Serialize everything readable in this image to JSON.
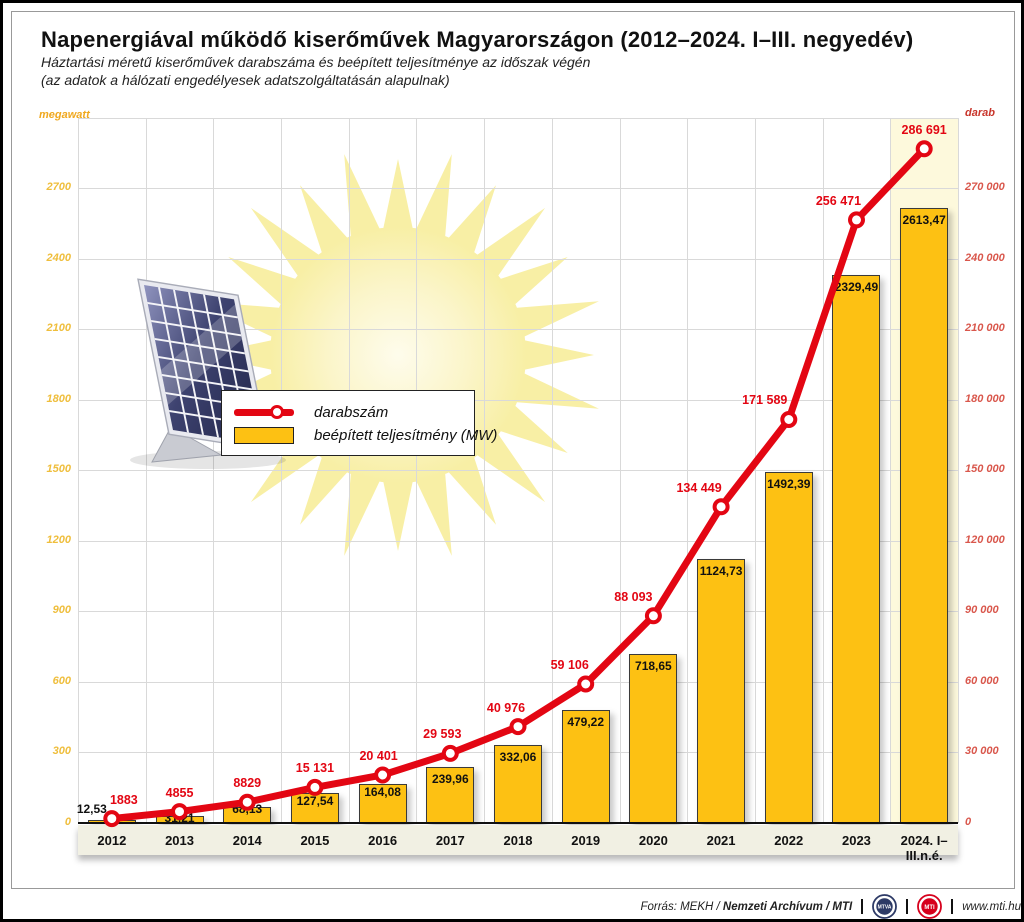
{
  "title": "Napenergiával működő kiserőművek Magyarországon (2012–2024. I–III. negyedév)",
  "subtitle_line1": "Háztartási méretű kiserőművek darabszáma és beépített teljesítménye az időszak végén",
  "subtitle_line2": "(az adatok a hálózati engedélyesek adatszolgáltatásán alapulnak)",
  "legend": {
    "line_label": "darabszám",
    "bar_label": "beépített teljesítmény (MW)"
  },
  "footer": {
    "source_regular": "Forrás: MEKH /",
    "source_bold": "Nemzeti Archívum / MTI",
    "logo_mtva": "MTVA",
    "logo_mti": "MTI",
    "website": "www.mti.hu"
  },
  "colors": {
    "bar_fill": "#FDC113",
    "bar_border": "#3a3a3a",
    "line_red": "#E30613",
    "grid": "#D9D9D9",
    "left_axis_ticks": "#EFBE3C",
    "left_axis_title": "#F0A81E",
    "right_axis_ticks": "#D9574C",
    "right_axis_title": "#C8352B",
    "highlight_band": "#FDF9DC",
    "xaxis_band": "#F1F0E3",
    "sun": "#F8EFA5",
    "logo_mtva_color": "#2D3A66",
    "logo_mti_color": "#D6001C"
  },
  "chart_data": {
    "type": "bar",
    "title": "Napenergiával működő kiserőművek Magyarországon (2012–2024. I–III. negyedév)",
    "categories": [
      "2012",
      "2013",
      "2014",
      "2015",
      "2016",
      "2017",
      "2018",
      "2019",
      "2020",
      "2021",
      "2022",
      "2023",
      "2024. I–III.n.é."
    ],
    "series": [
      {
        "name": "darabszám",
        "type": "line",
        "axis": "right",
        "values": [
          1883,
          4855,
          8829,
          15131,
          20401,
          29593,
          40976,
          59106,
          88093,
          134449,
          171589,
          256471,
          286691
        ],
        "labels": [
          "1883",
          "4855",
          "8829",
          "15 131",
          "20 401",
          "29 593",
          "40 976",
          "59 106",
          "88 093",
          "134 449",
          "171 589",
          "256 471",
          "286 691"
        ]
      },
      {
        "name": "beépített teljesítmény (MW)",
        "type": "bar",
        "axis": "left",
        "values": [
          12.53,
          31.21,
          68.13,
          127.54,
          164.08,
          239.96,
          332.06,
          479.22,
          718.65,
          1124.73,
          1492.39,
          2329.49,
          2613.47
        ],
        "labels": [
          "12,53",
          "31,21",
          "68,13",
          "127,54",
          "164,08",
          "239,96",
          "332,06",
          "479,22",
          "718,65",
          "1124,73",
          "1492,39",
          "2329,49",
          "2613,47"
        ]
      }
    ],
    "left_axis": {
      "label": "megawatt",
      "min": 0,
      "max": 2700,
      "step": 300,
      "ticks": [
        "0",
        "300",
        "600",
        "900",
        "1200",
        "1500",
        "1800",
        "2100",
        "2400",
        "2700"
      ]
    },
    "right_axis": {
      "label": "darab",
      "min": 0,
      "max": 270000,
      "step": 30000,
      "ticks": [
        "0",
        "30 000",
        "60 000",
        "90 000",
        "120 000",
        "150 000",
        "180 000",
        "210 000",
        "240 000",
        "270 000"
      ]
    },
    "grid": true,
    "legend_position": "upper-left-inside",
    "highlight_last_category": true
  }
}
